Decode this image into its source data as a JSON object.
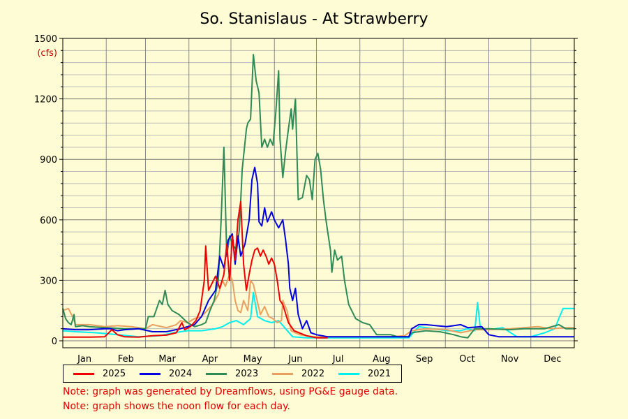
{
  "chart_data": {
    "type": "line",
    "title": "So. Stanislaus - At Strawberry",
    "ylabel": "(cfs)",
    "ylim": [
      0,
      1500
    ],
    "yticks": [
      "0",
      "300",
      "600",
      "900",
      "1200",
      "1500"
    ],
    "categories": [
      "Jan",
      "Feb",
      "Mar",
      "Apr",
      "May",
      "Jun",
      "Jul",
      "Aug",
      "Sep",
      "Oct",
      "Nov",
      "Dec"
    ],
    "xlim": [
      1,
      366
    ],
    "grid": true,
    "legend_position": "bottom",
    "series": [
      {
        "name": "2025",
        "color": "#ee0000",
        "points": [
          [
            1,
            18
          ],
          [
            20,
            18
          ],
          [
            31,
            20
          ],
          [
            36,
            55
          ],
          [
            40,
            30
          ],
          [
            45,
            20
          ],
          [
            55,
            18
          ],
          [
            65,
            25
          ],
          [
            75,
            28
          ],
          [
            82,
            40
          ],
          [
            86,
            90
          ],
          [
            88,
            55
          ],
          [
            92,
            70
          ],
          [
            96,
            100
          ],
          [
            99,
            150
          ],
          [
            102,
            300
          ],
          [
            103,
            470
          ],
          [
            105,
            250
          ],
          [
            110,
            320
          ],
          [
            113,
            260
          ],
          [
            116,
            330
          ],
          [
            118,
            480
          ],
          [
            120,
            300
          ],
          [
            122,
            520
          ],
          [
            124,
            400
          ],
          [
            126,
            600
          ],
          [
            128,
            690
          ],
          [
            130,
            380
          ],
          [
            132,
            250
          ],
          [
            134,
            330
          ],
          [
            136,
            400
          ],
          [
            138,
            450
          ],
          [
            140,
            460
          ],
          [
            142,
            420
          ],
          [
            144,
            450
          ],
          [
            146,
            420
          ],
          [
            148,
            380
          ],
          [
            150,
            410
          ],
          [
            152,
            380
          ],
          [
            154,
            300
          ],
          [
            156,
            200
          ],
          [
            158,
            180
          ],
          [
            162,
            90
          ],
          [
            166,
            50
          ],
          [
            175,
            25
          ],
          [
            182,
            15
          ],
          [
            190,
            15
          ]
        ]
      },
      {
        "name": "2024",
        "color": "#0000dd",
        "points": [
          [
            1,
            60
          ],
          [
            10,
            55
          ],
          [
            20,
            55
          ],
          [
            31,
            60
          ],
          [
            35,
            60
          ],
          [
            40,
            50
          ],
          [
            45,
            55
          ],
          [
            55,
            60
          ],
          [
            65,
            45
          ],
          [
            75,
            45
          ],
          [
            85,
            60
          ],
          [
            95,
            80
          ],
          [
            100,
            120
          ],
          [
            105,
            200
          ],
          [
            110,
            250
          ],
          [
            113,
            420
          ],
          [
            116,
            360
          ],
          [
            119,
            500
          ],
          [
            122,
            530
          ],
          [
            124,
            380
          ],
          [
            126,
            520
          ],
          [
            128,
            420
          ],
          [
            131,
            480
          ],
          [
            134,
            600
          ],
          [
            136,
            800
          ],
          [
            138,
            860
          ],
          [
            140,
            780
          ],
          [
            141,
            590
          ],
          [
            143,
            570
          ],
          [
            145,
            660
          ],
          [
            147,
            590
          ],
          [
            150,
            640
          ],
          [
            152,
            600
          ],
          [
            155,
            560
          ],
          [
            158,
            600
          ],
          [
            160,
            500
          ],
          [
            162,
            380
          ],
          [
            163,
            260
          ],
          [
            165,
            200
          ],
          [
            167,
            260
          ],
          [
            169,
            130
          ],
          [
            172,
            60
          ],
          [
            175,
            100
          ],
          [
            178,
            40
          ],
          [
            182,
            30
          ],
          [
            190,
            20
          ],
          [
            210,
            20
          ],
          [
            232,
            20
          ],
          [
            248,
            20
          ],
          [
            250,
            60
          ],
          [
            255,
            80
          ],
          [
            260,
            80
          ],
          [
            275,
            70
          ],
          [
            285,
            80
          ],
          [
            290,
            65
          ],
          [
            300,
            70
          ],
          [
            305,
            30
          ],
          [
            312,
            20
          ],
          [
            330,
            20
          ],
          [
            345,
            20
          ],
          [
            366,
            20
          ]
        ]
      },
      {
        "name": "2023",
        "color": "#2e8b57",
        "points": [
          [
            1,
            160
          ],
          [
            3,
            110
          ],
          [
            5,
            90
          ],
          [
            7,
            80
          ],
          [
            9,
            130
          ],
          [
            10,
            70
          ],
          [
            15,
            75
          ],
          [
            20,
            70
          ],
          [
            31,
            65
          ],
          [
            45,
            60
          ],
          [
            60,
            60
          ],
          [
            62,
            120
          ],
          [
            66,
            120
          ],
          [
            70,
            200
          ],
          [
            72,
            180
          ],
          [
            74,
            250
          ],
          [
            76,
            180
          ],
          [
            79,
            150
          ],
          [
            84,
            130
          ],
          [
            90,
            90
          ],
          [
            95,
            70
          ],
          [
            100,
            80
          ],
          [
            103,
            90
          ],
          [
            106,
            150
          ],
          [
            109,
            200
          ],
          [
            112,
            300
          ],
          [
            114,
            600
          ],
          [
            116,
            960
          ],
          [
            118,
            420
          ],
          [
            120,
            520
          ],
          [
            122,
            480
          ],
          [
            125,
            450
          ],
          [
            127,
            550
          ],
          [
            129,
            850
          ],
          [
            132,
            1050
          ],
          [
            133,
            1080
          ],
          [
            135,
            1100
          ],
          [
            137,
            1420
          ],
          [
            139,
            1290
          ],
          [
            141,
            1230
          ],
          [
            143,
            960
          ],
          [
            145,
            1000
          ],
          [
            147,
            960
          ],
          [
            149,
            1000
          ],
          [
            151,
            970
          ],
          [
            153,
            1130
          ],
          [
            155,
            1340
          ],
          [
            156,
            1000
          ],
          [
            158,
            810
          ],
          [
            160,
            940
          ],
          [
            162,
            1050
          ],
          [
            164,
            1150
          ],
          [
            165,
            1050
          ],
          [
            167,
            1200
          ],
          [
            169,
            700
          ],
          [
            172,
            710
          ],
          [
            175,
            820
          ],
          [
            177,
            800
          ],
          [
            179,
            700
          ],
          [
            181,
            900
          ],
          [
            183,
            930
          ],
          [
            185,
            850
          ],
          [
            187,
            700
          ],
          [
            189,
            590
          ],
          [
            192,
            450
          ],
          [
            193,
            340
          ],
          [
            195,
            450
          ],
          [
            197,
            400
          ],
          [
            200,
            420
          ],
          [
            202,
            300
          ],
          [
            205,
            180
          ],
          [
            210,
            110
          ],
          [
            215,
            90
          ],
          [
            220,
            80
          ],
          [
            225,
            30
          ],
          [
            235,
            30
          ],
          [
            240,
            20
          ],
          [
            248,
            20
          ],
          [
            250,
            40
          ],
          [
            260,
            50
          ],
          [
            270,
            45
          ],
          [
            280,
            30
          ],
          [
            285,
            20
          ],
          [
            290,
            15
          ],
          [
            295,
            60
          ],
          [
            305,
            60
          ],
          [
            320,
            55
          ],
          [
            330,
            60
          ],
          [
            345,
            60
          ],
          [
            350,
            70
          ],
          [
            355,
            80
          ],
          [
            360,
            60
          ],
          [
            366,
            60
          ]
        ]
      },
      {
        "name": "2022",
        "color": "#e8a060",
        "points": [
          [
            1,
            150
          ],
          [
            5,
            160
          ],
          [
            8,
            120
          ],
          [
            10,
            80
          ],
          [
            20,
            80
          ],
          [
            31,
            70
          ],
          [
            40,
            75
          ],
          [
            50,
            70
          ],
          [
            60,
            60
          ],
          [
            65,
            80
          ],
          [
            75,
            65
          ],
          [
            82,
            80
          ],
          [
            85,
            100
          ],
          [
            90,
            90
          ],
          [
            95,
            110
          ],
          [
            100,
            120
          ],
          [
            104,
            150
          ],
          [
            108,
            180
          ],
          [
            112,
            230
          ],
          [
            115,
            300
          ],
          [
            117,
            270
          ],
          [
            120,
            330
          ],
          [
            122,
            300
          ],
          [
            124,
            200
          ],
          [
            126,
            150
          ],
          [
            128,
            140
          ],
          [
            130,
            200
          ],
          [
            133,
            150
          ],
          [
            135,
            300
          ],
          [
            137,
            280
          ],
          [
            139,
            220
          ],
          [
            142,
            130
          ],
          [
            145,
            170
          ],
          [
            148,
            120
          ],
          [
            151,
            110
          ],
          [
            154,
            90
          ],
          [
            157,
            100
          ],
          [
            158,
            200
          ],
          [
            161,
            150
          ],
          [
            164,
            50
          ],
          [
            170,
            30
          ],
          [
            180,
            20
          ],
          [
            190,
            20
          ],
          [
            210,
            20
          ],
          [
            235,
            20
          ],
          [
            245,
            25
          ],
          [
            250,
            50
          ],
          [
            260,
            60
          ],
          [
            275,
            55
          ],
          [
            285,
            40
          ],
          [
            295,
            55
          ],
          [
            305,
            55
          ],
          [
            320,
            60
          ],
          [
            340,
            70
          ],
          [
            350,
            60
          ],
          [
            360,
            65
          ],
          [
            366,
            65
          ]
        ]
      },
      {
        "name": "2021",
        "color": "#00eeee",
        "points": [
          [
            1,
            50
          ],
          [
            10,
            45
          ],
          [
            25,
            40
          ],
          [
            40,
            30
          ],
          [
            55,
            20
          ],
          [
            70,
            25
          ],
          [
            80,
            40
          ],
          [
            90,
            50
          ],
          [
            100,
            50
          ],
          [
            110,
            60
          ],
          [
            115,
            70
          ],
          [
            120,
            90
          ],
          [
            125,
            100
          ],
          [
            130,
            80
          ],
          [
            135,
            110
          ],
          [
            137,
            240
          ],
          [
            140,
            120
          ],
          [
            145,
            100
          ],
          [
            150,
            90
          ],
          [
            155,
            100
          ],
          [
            160,
            60
          ],
          [
            165,
            20
          ],
          [
            175,
            15
          ],
          [
            190,
            15
          ],
          [
            210,
            15
          ],
          [
            230,
            15
          ],
          [
            248,
            15
          ],
          [
            255,
            70
          ],
          [
            265,
            60
          ],
          [
            275,
            50
          ],
          [
            285,
            50
          ],
          [
            290,
            60
          ],
          [
            295,
            50
          ],
          [
            297,
            190
          ],
          [
            299,
            60
          ],
          [
            305,
            55
          ],
          [
            315,
            65
          ],
          [
            325,
            20
          ],
          [
            335,
            20
          ],
          [
            345,
            40
          ],
          [
            352,
            60
          ],
          [
            358,
            160
          ],
          [
            362,
            160
          ],
          [
            366,
            160
          ]
        ]
      }
    ]
  },
  "notes": [
    "Note: graph was generated by Dreamflows, using PG&E gauge data.",
    "Note: graph shows the noon flow for each day."
  ]
}
